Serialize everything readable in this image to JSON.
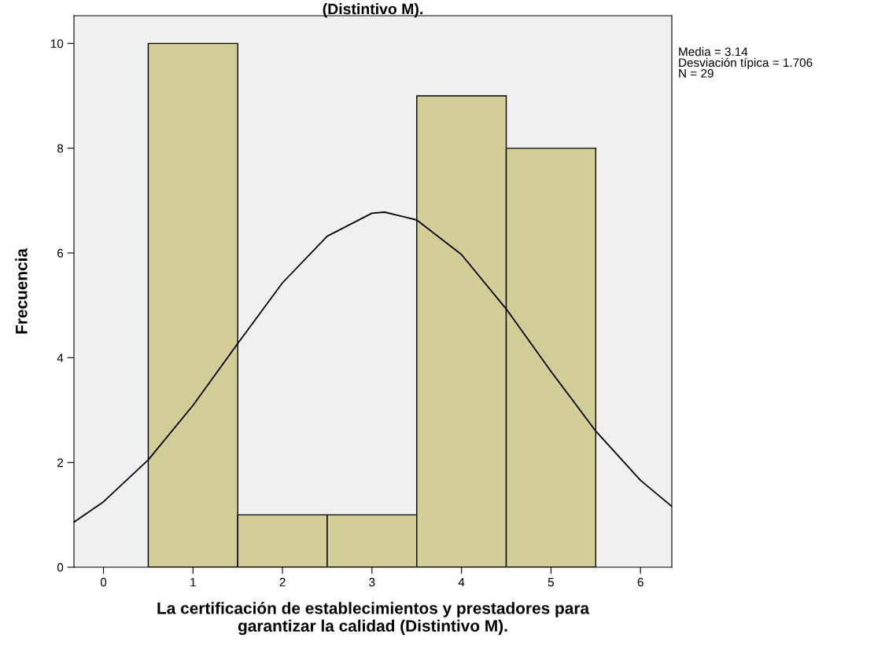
{
  "chart_data": {
    "type": "histogram",
    "title": "(Distintivo M).",
    "xlabel": "La certificación de establecimientos y prestadores para\ngarantizar la calidad (Distintivo M).",
    "ylabel": "Frecuencia",
    "bins": [
      0.5,
      1.5,
      2.5,
      3.5,
      4.5,
      5.5
    ],
    "values": [
      10,
      1,
      1,
      9,
      8
    ],
    "color": "#d3ce97",
    "series": [
      {
        "type": "line",
        "color": "#000000",
        "x": [
          -0.33,
          0,
          0.5,
          1,
          1.5,
          2,
          2.5,
          3,
          3.14,
          3.5,
          4,
          4.5,
          5,
          5.5,
          6,
          6.35
        ],
        "values": [
          0.86,
          1.25,
          2.05,
          3.09,
          4.27,
          5.43,
          6.32,
          6.76,
          6.78,
          6.63,
          5.97,
          4.93,
          3.74,
          2.6,
          1.66,
          1.16
        ]
      }
    ],
    "xlim": [
      -0.33,
      6.35
    ],
    "xticks": [
      0,
      1,
      2,
      3,
      4,
      5,
      6
    ],
    "ylim": [
      0,
      10.53
    ],
    "yticks": [
      0,
      2,
      4,
      6,
      8,
      10
    ],
    "grid": false,
    "legend": false,
    "annotations": [
      "Media = 3.14\nDesviación típica = 1.706\nN = 29"
    ]
  }
}
